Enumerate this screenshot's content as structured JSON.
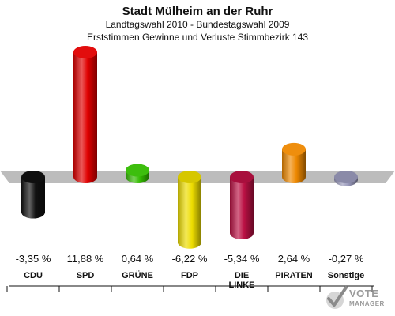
{
  "header": {
    "title": "Stadt Mülheim an der Ruhr",
    "subtitle1": "Landtagswahl 2010 - Bundestagswahl 2009",
    "subtitle2": "Erststimmen Gewinne und Verluste Stimmbezirk 143"
  },
  "chart_data": {
    "type": "bar",
    "categories": [
      "CDU",
      "SPD",
      "GRÜNE",
      "FDP",
      "DIE LINKE",
      "PIRATEN",
      "Sonstige"
    ],
    "values": [
      -3.35,
      11.88,
      0.64,
      -6.22,
      -5.34,
      2.64,
      -0.27
    ],
    "value_labels": [
      "-3,35 %",
      "11,88 %",
      "0,64 %",
      "-6,22 %",
      "-5,34 %",
      "2,64 %",
      "-0,27 %"
    ],
    "colors": [
      "#111111",
      "#e00000",
      "#33bb00",
      "#eedd00",
      "#bb1144",
      "#ee8800",
      "#9999bb"
    ],
    "title": "Stadt Mülheim an der Ruhr",
    "ylim": [
      -7,
      13
    ],
    "grid": false,
    "legend": "none"
  },
  "watermark": {
    "line1": "VOTE",
    "line2": "MANAGER"
  }
}
